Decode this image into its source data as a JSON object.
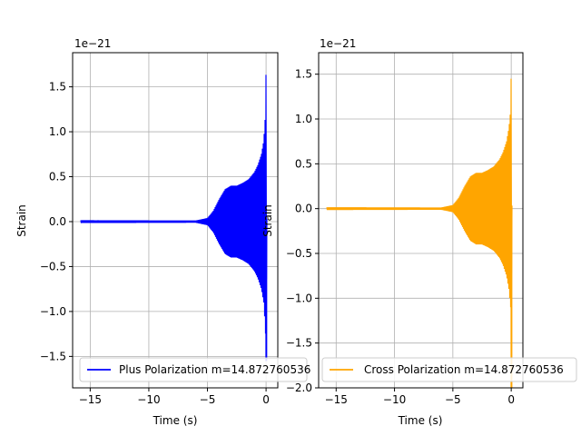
{
  "chart_data": [
    {
      "type": "line",
      "id": "plus",
      "xlabel": "Time (s)",
      "ylabel": "Strain",
      "offset_text": "1e−21",
      "xlim": [
        -16.5,
        1.0
      ],
      "ylim": [
        -1.85,
        1.88
      ],
      "xticks": [
        -15,
        -10,
        -5,
        0
      ],
      "xtick_labels": [
        "−15",
        "−10",
        "−5",
        "0"
      ],
      "yticks": [
        -1.5,
        -1.0,
        -0.5,
        0.0,
        0.5,
        1.0,
        1.5
      ],
      "ytick_labels": [
        "−1.5",
        "−1.0",
        "−0.5",
        "0.0",
        "0.5",
        "1.0",
        "1.5"
      ],
      "grid": true,
      "legend_position": "lower-left",
      "series": [
        {
          "name": "Plus Polarization m=14.872760536",
          "color": "#0000ff",
          "envelope": {
            "t_start": -15.8,
            "t_end": 0.1,
            "initial_amplitude": 0.015,
            "points": [
              [
                -15.8,
                0.015
              ],
              [
                -6.0,
                0.012
              ],
              [
                -5.0,
                0.04
              ],
              [
                -4.5,
                0.12
              ],
              [
                -4.0,
                0.25
              ],
              [
                -3.5,
                0.36
              ],
              [
                -3.0,
                0.4
              ],
              [
                -2.5,
                0.4
              ],
              [
                -2.0,
                0.43
              ],
              [
                -1.5,
                0.47
              ],
              [
                -1.0,
                0.55
              ],
              [
                -0.7,
                0.63
              ],
              [
                -0.4,
                0.75
              ],
              [
                -0.2,
                0.9
              ],
              [
                -0.05,
                1.2
              ],
              [
                0.0,
                1.7
              ],
              [
                0.05,
                0.05
              ],
              [
                0.1,
                0.0
              ]
            ],
            "min_spike": -1.55
          }
        }
      ]
    },
    {
      "type": "line",
      "id": "cross",
      "xlabel": "Time (s)",
      "ylabel": "Strain",
      "offset_text": "1e−21",
      "xlim": [
        -16.5,
        1.0
      ],
      "ylim": [
        -2.0,
        1.74
      ],
      "xticks": [
        -15,
        -10,
        -5,
        0
      ],
      "xtick_labels": [
        "−15",
        "−10",
        "−5",
        "0"
      ],
      "yticks": [
        -2.0,
        -1.5,
        -1.0,
        -0.5,
        0.0,
        0.5,
        1.0,
        1.5
      ],
      "ytick_labels": [
        "−2.0",
        "−1.5",
        "−1.0",
        "−0.5",
        "0.0",
        "0.5",
        "1.0",
        "1.5"
      ],
      "grid": true,
      "legend_position": "lower-left",
      "series": [
        {
          "name": "Cross Polarization m=14.872760536",
          "color": "#ffa500",
          "envelope": {
            "t_start": -15.8,
            "t_end": 0.1,
            "initial_amplitude": 0.015,
            "points": [
              [
                -15.8,
                0.015
              ],
              [
                -6.0,
                0.012
              ],
              [
                -5.0,
                0.04
              ],
              [
                -4.5,
                0.12
              ],
              [
                -4.0,
                0.25
              ],
              [
                -3.5,
                0.36
              ],
              [
                -3.0,
                0.4
              ],
              [
                -2.5,
                0.4
              ],
              [
                -2.0,
                0.43
              ],
              [
                -1.5,
                0.47
              ],
              [
                -1.0,
                0.55
              ],
              [
                -0.7,
                0.63
              ],
              [
                -0.4,
                0.75
              ],
              [
                -0.2,
                0.9
              ],
              [
                -0.05,
                1.1
              ],
              [
                0.0,
                1.55
              ],
              [
                0.05,
                0.05
              ],
              [
                0.1,
                0.0
              ]
            ],
            "min_spike": -2.0
          }
        }
      ]
    }
  ]
}
